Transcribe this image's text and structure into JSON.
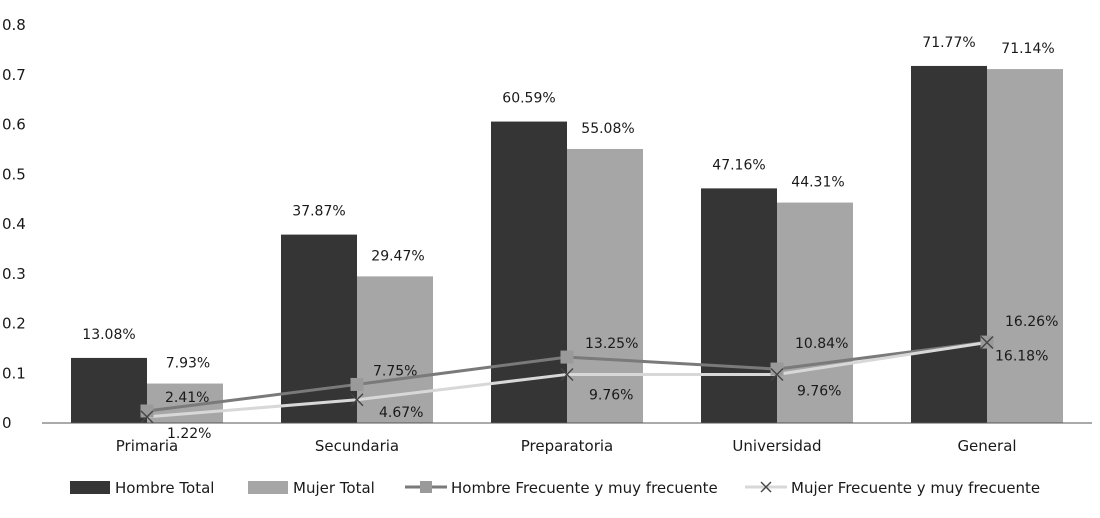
{
  "chart_data": {
    "type": "bar",
    "categories": [
      "Primaria",
      "Secundaria",
      "Preparatoria",
      "Universidad",
      "General"
    ],
    "ylim": [
      0,
      0.8
    ],
    "yticks": [
      "0",
      "0.1",
      "0.2",
      "0.3",
      "0.4",
      "0.5",
      "0.6",
      "0.7",
      "0.8"
    ],
    "grid": false,
    "legend_position": "bottom",
    "colors": {
      "hombre_total": "#353535",
      "mujer_total": "#a6a6a6",
      "hombre_frecuente": "#7a7a7a",
      "mujer_frecuente": "#d8d8d8",
      "axis": "#555555"
    },
    "series": [
      {
        "name": "Hombre Total",
        "kind": "bar",
        "values": [
          0.1308,
          0.3787,
          0.6059,
          0.4716,
          0.7177
        ],
        "labels": [
          "13.08%",
          "37.87%",
          "60.59%",
          "47.16%",
          "71.77%"
        ]
      },
      {
        "name": "Mujer Total",
        "kind": "bar",
        "values": [
          0.0793,
          0.2947,
          0.5508,
          0.4431,
          0.7114
        ],
        "labels": [
          "7.93%",
          "29.47%",
          "55.08%",
          "44.31%",
          "71.14%"
        ]
      },
      {
        "name": "Hombre Frecuente y muy frecuente",
        "kind": "line",
        "marker": "square",
        "values": [
          0.0241,
          0.0775,
          0.1325,
          0.1084,
          0.1626
        ],
        "labels": [
          "2.41%",
          "7.75%",
          "13.25%",
          "10.84%",
          "16.26%"
        ]
      },
      {
        "name": "Mujer Frecuente y muy frecuente",
        "kind": "line",
        "marker": "x",
        "values": [
          0.0122,
          0.0467,
          0.0976,
          0.0976,
          0.1618
        ],
        "labels": [
          "1.22%",
          "4.67%",
          "9.76%",
          "9.76%",
          "16.18%"
        ]
      }
    ]
  }
}
